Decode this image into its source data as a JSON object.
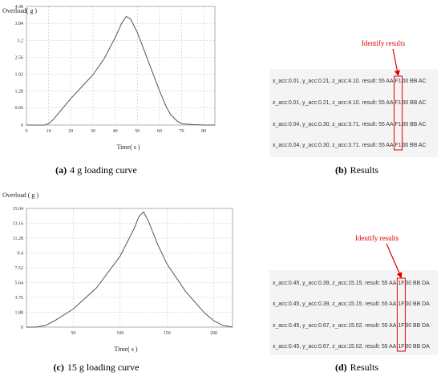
{
  "chart_data": [
    {
      "type": "line",
      "ylabel": "Overload( g )",
      "xlabel": "Time( s )",
      "caption": {
        "label": "(a)",
        "text": "4 g loading curve"
      },
      "series": [
        {
          "name": "Overload",
          "color": "#555555",
          "x": [
            0,
            5,
            8,
            10,
            12,
            15,
            20,
            25,
            30,
            35,
            40,
            43,
            45,
            47,
            50,
            55,
            60,
            63,
            65,
            68,
            70,
            75,
            80,
            85
          ],
          "values": [
            0,
            0,
            0,
            0.05,
            0.2,
            0.5,
            1.0,
            1.45,
            1.9,
            2.5,
            3.3,
            3.85,
            4.1,
            4.0,
            3.5,
            2.4,
            1.3,
            0.7,
            0.4,
            0.15,
            0.05,
            0.02,
            0,
            0
          ]
        }
      ],
      "xlim": [
        0,
        85
      ],
      "xticks": [
        0,
        10,
        20,
        30,
        40,
        50,
        60,
        70,
        80
      ],
      "ylim": [
        0,
        4.48
      ],
      "yticks": [
        0,
        0.66,
        1.28,
        1.92,
        2.56,
        3.2,
        3.84,
        4.48
      ],
      "grid": true
    },
    {
      "type": "line",
      "ylabel": "Overload ( g )",
      "xlabel": "Time( s )",
      "caption": {
        "label": "(c)",
        "text": "15 g loading curve"
      },
      "series": [
        {
          "name": "Overload",
          "color": "#555555",
          "x": [
            0,
            10,
            20,
            30,
            50,
            75,
            100,
            115,
            120,
            125,
            130,
            140,
            150,
            170,
            190,
            200,
            210,
            220
          ],
          "values": [
            0,
            0,
            0.2,
            0.8,
            2.3,
            5.0,
            9.0,
            12.5,
            14.0,
            14.6,
            13.5,
            10.5,
            8.0,
            4.5,
            1.8,
            0.8,
            0.2,
            0
          ]
        }
      ],
      "xlim": [
        0,
        220
      ],
      "xticks": [
        50,
        100,
        150,
        200
      ],
      "ylim": [
        0,
        15.04
      ],
      "yticks": [
        0,
        1.88,
        3.76,
        5.64,
        7.52,
        9.4,
        11.28,
        13.16,
        15.04
      ],
      "grid": true
    }
  ],
  "panels": [
    {
      "annotation": "Identify results",
      "caption": {
        "label": "(b)",
        "text": "Results"
      },
      "lines": [
        {
          "prefix": "x_acc:0.01, y_acc:0.21, z_acc:4.10. result: 55 AA",
          "code": "F1",
          "suffix": "00 BB AC"
        },
        {
          "prefix": "x_acc:0.01, y_acc:0.21, z_acc:4.10. result: 55 AA",
          "code": "F1",
          "suffix": "00 BB AC"
        },
        {
          "prefix": "x_acc:0.04, y_acc:0.30, z_acc:3.71. result: 55 AA",
          "code": "F1",
          "suffix": "00 BB AC"
        },
        {
          "prefix": "x_acc:0.04, y_acc:0.30, z_acc:3.71. result: 55 AA",
          "code": "F1",
          "suffix": "00 BB AC"
        }
      ]
    },
    {
      "annotation": "Identify results",
      "caption": {
        "label": "(d)",
        "text": "Results"
      },
      "lines": [
        {
          "prefix": "x_acc:0.45, y_acc:0.39, z_acc:15.15. result: 55 AA",
          "code": "1F",
          "suffix": "00 BB DA"
        },
        {
          "prefix": "x_acc:0.45, y_acc:0.39, z_acc:15.15. result: 55 AA",
          "code": "1F",
          "suffix": "00 BB DA"
        },
        {
          "prefix": "x_acc:0.45, y_acc:0.67, z_acc:15.02. result: 55 AA",
          "code": "1F",
          "suffix": "00 BB DA"
        },
        {
          "prefix": "x_acc:0.45, y_acc:0.67, z_acc:15.02. result: 55 AA",
          "code": "1F",
          "suffix": "00 BB DA"
        }
      ]
    }
  ]
}
